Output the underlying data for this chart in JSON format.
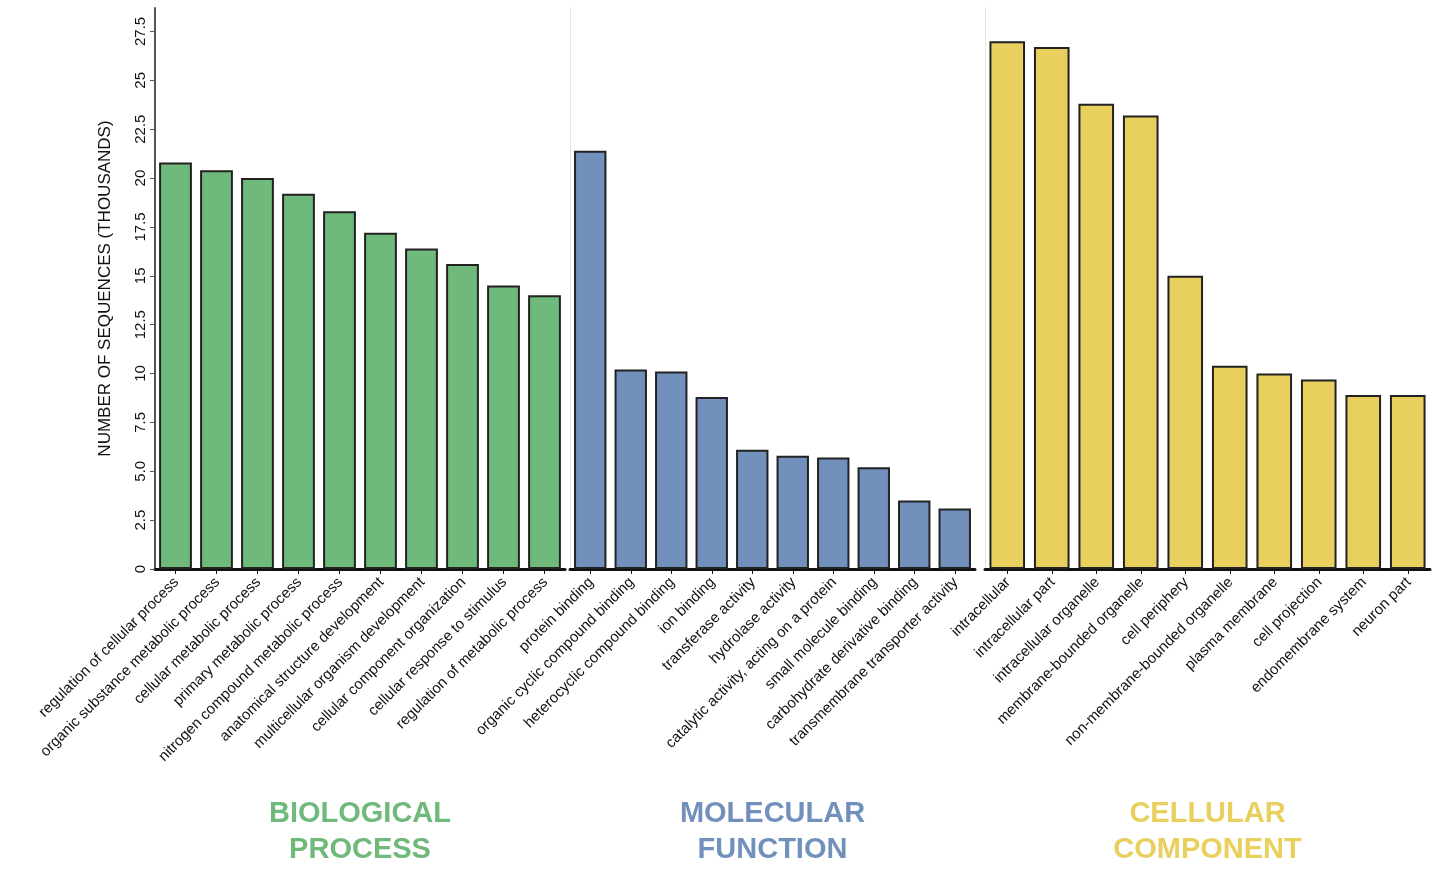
{
  "chart_data": [
    {
      "type": "bar",
      "ylabel": "NUMBER OF SEQUENCES (THOUSANDS)",
      "xlabel": "BIOLOGICAL PROCESS",
      "color": "#6fb97a",
      "categories": [
        "regulation of cellular process",
        "organic substance metabolic process",
        "cellular metabolic process",
        "primary metabolic process",
        "nitrogen compound metabolic process",
        "anatomical structure development",
        "multicellular organism development",
        "cellular component organization",
        "cellular response to stimulus",
        "regulation of metabolic process"
      ],
      "values": [
        20.8,
        20.4,
        20.0,
        19.2,
        18.3,
        17.2,
        16.4,
        15.6,
        14.5,
        14.0
      ],
      "ylim": [
        0,
        28.7
      ],
      "yticks": [
        0,
        2.5,
        {
          "value": 5,
          "label": "5.0"
        },
        {
          "value": 7.5,
          "label": "7.5"
        },
        10,
        12.5,
        15,
        17.5,
        20,
        22.5,
        25,
        27.5
      ],
      "grid": false
    },
    {
      "type": "bar",
      "xlabel": "MOLECULAR FUNCTION",
      "color": "#7190bb",
      "categories": [
        "protein binding",
        "organic cyclic compound binding",
        "heterocyclic compound binding",
        "ion binding",
        "transferase activity",
        "hydrolase activity",
        "catalytic activity, acting on a protein",
        "small molecule binding",
        "carbohydrate derivative binding",
        "transmembrane transporter activity"
      ],
      "values": [
        21.4,
        10.2,
        10.1,
        8.8,
        6.1,
        5.8,
        5.7,
        5.2,
        3.5,
        3.1
      ],
      "ylim": [
        0,
        28.7
      ],
      "tick_labels": "x",
      "grid": false
    },
    {
      "type": "bar",
      "xlabel": "CELLULAR COMPONENT",
      "color": "#e8cf5e",
      "categories": [
        "intracellular",
        "intracellular part",
        "intracellular organelle",
        "membrane-bounded organelle",
        "cell periphery",
        "non-membrane-bounded organelle",
        "plasma membrane",
        "cell projection",
        "endomembrane system",
        "neuron part"
      ],
      "values": [
        27.0,
        26.7,
        23.8,
        23.2,
        15.0,
        10.4,
        10.0,
        9.7,
        8.9,
        8.9
      ],
      "ylim": [
        0,
        28.7
      ],
      "tick_labels": "x",
      "grid": false
    }
  ]
}
